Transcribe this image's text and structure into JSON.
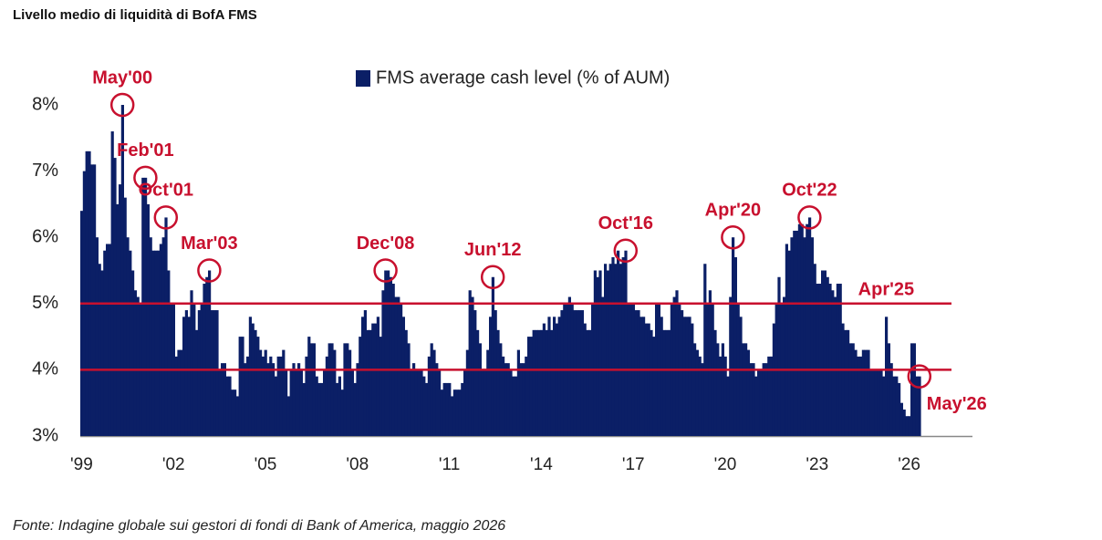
{
  "header": "Livello medio di liquidità di BofA FMS",
  "footer": "Fonte: Indagine globale sui gestori di fondi di Bank of America, maggio 2026",
  "chart_data": {
    "type": "bar",
    "series": [
      {
        "name": "FMS average cash level (% of AUM)",
        "color": "#0b1f66",
        "values": [
          6.4,
          7.0,
          7.3,
          7.3,
          7.1,
          7.1,
          6.0,
          5.6,
          5.5,
          5.8,
          5.9,
          5.9,
          7.6,
          7.2,
          6.5,
          6.8,
          8.0,
          6.6,
          6.0,
          5.8,
          5.5,
          5.2,
          5.1,
          5.0,
          6.9,
          6.9,
          6.5,
          6.0,
          5.8,
          5.8,
          5.8,
          5.9,
          6.0,
          6.3,
          5.5,
          5.0,
          5.0,
          4.2,
          4.3,
          4.3,
          4.8,
          4.9,
          4.8,
          5.2,
          5.0,
          4.6,
          4.9,
          5.0,
          5.3,
          5.4,
          5.5,
          4.9,
          4.9,
          4.9,
          4.0,
          4.1,
          4.1,
          3.9,
          3.9,
          3.7,
          3.7,
          3.6,
          4.5,
          4.5,
          4.1,
          4.2,
          4.8,
          4.7,
          4.6,
          4.5,
          4.3,
          4.2,
          4.3,
          4.1,
          4.2,
          4.1,
          3.9,
          4.2,
          4.2,
          4.3,
          4.0,
          3.6,
          4.0,
          4.1,
          4.0,
          4.1,
          4.0,
          3.8,
          4.2,
          4.5,
          4.4,
          4.4,
          3.9,
          3.8,
          3.8,
          4.0,
          4.2,
          4.4,
          4.4,
          4.3,
          3.8,
          3.9,
          3.7,
          4.4,
          4.4,
          4.3,
          4.0,
          3.8,
          4.1,
          4.5,
          4.8,
          4.9,
          4.6,
          4.6,
          4.7,
          4.7,
          4.8,
          4.5,
          5.2,
          5.5,
          5.5,
          5.4,
          5.3,
          5.1,
          5.1,
          5.0,
          4.8,
          4.6,
          4.4,
          4.0,
          4.1,
          4.0,
          4.0,
          4.0,
          3.9,
          3.8,
          4.2,
          4.4,
          4.3,
          4.1,
          4.0,
          3.7,
          3.8,
          3.8,
          3.8,
          3.6,
          3.7,
          3.7,
          3.7,
          3.8,
          4.0,
          4.3,
          5.2,
          5.1,
          4.9,
          4.6,
          4.4,
          4.0,
          4.0,
          4.3,
          4.8,
          5.4,
          4.9,
          4.6,
          4.4,
          4.2,
          4.1,
          4.1,
          4.0,
          3.9,
          3.9,
          4.3,
          4.1,
          4.1,
          4.2,
          4.5,
          4.5,
          4.6,
          4.6,
          4.6,
          4.6,
          4.7,
          4.6,
          4.8,
          4.6,
          4.8,
          4.7,
          4.8,
          4.9,
          5.0,
          5.0,
          5.1,
          5.0,
          4.9,
          4.9,
          4.9,
          4.9,
          4.7,
          4.6,
          4.6,
          5.0,
          5.5,
          5.4,
          5.5,
          5.1,
          5.6,
          5.5,
          5.6,
          5.7,
          5.6,
          5.8,
          5.6,
          5.7,
          5.8,
          5.0,
          5.0,
          5.0,
          4.9,
          4.9,
          4.8,
          4.8,
          4.7,
          4.7,
          4.6,
          4.5,
          5.0,
          5.0,
          4.8,
          4.6,
          4.6,
          4.6,
          5.0,
          5.1,
          5.2,
          5.0,
          4.9,
          4.8,
          4.8,
          4.8,
          4.7,
          4.4,
          4.3,
          4.2,
          4.1,
          5.6,
          5.0,
          5.2,
          5.0,
          4.6,
          4.4,
          4.2,
          4.4,
          4.2,
          3.9,
          5.1,
          6.0,
          5.7,
          5.0,
          4.8,
          4.4,
          4.4,
          4.3,
          4.1,
          4.1,
          3.9,
          4.0,
          4.0,
          4.1,
          4.1,
          4.2,
          4.2,
          4.7,
          5.0,
          5.4,
          5.0,
          5.1,
          5.9,
          5.8,
          6.0,
          6.1,
          6.1,
          6.2,
          6.2,
          6.0,
          6.2,
          6.3,
          6.0,
          5.6,
          5.3,
          5.3,
          5.5,
          5.5,
          5.4,
          5.3,
          5.2,
          5.1,
          5.3,
          5.3,
          4.7,
          4.6,
          4.6,
          4.4,
          4.4,
          4.3,
          4.2,
          4.2,
          4.3,
          4.3,
          4.3,
          4.0,
          4.0,
          4.0,
          4.0,
          4.0,
          3.9,
          4.8,
          4.4,
          4.1,
          3.9,
          3.9,
          3.8,
          3.5,
          3.4,
          3.3,
          3.3,
          4.4,
          4.4,
          3.9,
          3.9
        ]
      }
    ],
    "categories": [
      "'99",
      null,
      null,
      null,
      null,
      null,
      null,
      null,
      null,
      null,
      null,
      null,
      null,
      null,
      null,
      null,
      null,
      null,
      null,
      null,
      null,
      null,
      null,
      null,
      null,
      null,
      null,
      null,
      null,
      null,
      null,
      null,
      null,
      null,
      null,
      null,
      "'02",
      null,
      null,
      null,
      null,
      null,
      null,
      null,
      null,
      null,
      null,
      null,
      null,
      null,
      null,
      null,
      null,
      null,
      null,
      null,
      null,
      null,
      null,
      null,
      null,
      null,
      null,
      null,
      null,
      null,
      null,
      null,
      null,
      null,
      null,
      null,
      "'05",
      null,
      null,
      null,
      null,
      null,
      null,
      null,
      null,
      null,
      null,
      null,
      null,
      null,
      null,
      null,
      null,
      null,
      null,
      null,
      null,
      null,
      null,
      null,
      null,
      null,
      null,
      null,
      null,
      null,
      null,
      null,
      null,
      null,
      null,
      null,
      "'08",
      null,
      null,
      null,
      null,
      null,
      null,
      null,
      null,
      null,
      null,
      null,
      null,
      null,
      null,
      null,
      null,
      null,
      null,
      null,
      null,
      null,
      null,
      null,
      null,
      null,
      null,
      null,
      null,
      null,
      null,
      null,
      null,
      null,
      null,
      null,
      "'11",
      null,
      null,
      null,
      null,
      null,
      null,
      null,
      null,
      null,
      null,
      null,
      null,
      null,
      null,
      null,
      null,
      null,
      null,
      null,
      null,
      null,
      null,
      null,
      null,
      null,
      null,
      null,
      null,
      null,
      null,
      null,
      null,
      null,
      null,
      null,
      "'14",
      null,
      null,
      null,
      null,
      null,
      null,
      null,
      null,
      null,
      null,
      null,
      null,
      null,
      null,
      null,
      null,
      null,
      null,
      null,
      null,
      null,
      null,
      null,
      null,
      null,
      null,
      null,
      null,
      null,
      null,
      null,
      null,
      null,
      null,
      null,
      "'17",
      null,
      null,
      null,
      null,
      null,
      null,
      null,
      null,
      null,
      null,
      null,
      null,
      null,
      null,
      null,
      null,
      null,
      null,
      null,
      null,
      null,
      null,
      null,
      null,
      null,
      null,
      null,
      null,
      null,
      null,
      null,
      null,
      null,
      null,
      null,
      "'20",
      null,
      null,
      null,
      null,
      null,
      null,
      null,
      null,
      null,
      null,
      null,
      null,
      null,
      null,
      null,
      null,
      null,
      null,
      null,
      null,
      null,
      null,
      null,
      null,
      null,
      null,
      null,
      null,
      null,
      null,
      null,
      null,
      null,
      null,
      null,
      "'23",
      null,
      null,
      null,
      null,
      null,
      null,
      null,
      null,
      null,
      null,
      null,
      null,
      null,
      null,
      null,
      null,
      null,
      null,
      null,
      null,
      null,
      null,
      null,
      null,
      null,
      null,
      null,
      null,
      null,
      null,
      null,
      null,
      null,
      null,
      null,
      "'26",
      null,
      null,
      null,
      null
    ],
    "ylim": [
      3,
      8.5
    ],
    "yticks": [
      {
        "value": 3,
        "label": "3%"
      },
      {
        "value": 4,
        "label": "4%"
      },
      {
        "value": 5,
        "label": "5%"
      },
      {
        "value": 6,
        "label": "6%"
      },
      {
        "value": 7,
        "label": "7%"
      },
      {
        "value": 8,
        "label": "8%"
      }
    ],
    "hlines": [
      4,
      5
    ],
    "hline_color": "#c8102e",
    "legend": "top",
    "annotations": [
      {
        "text": "May'00",
        "index": 16,
        "circle": true
      },
      {
        "text": "Feb'01",
        "index": 25,
        "circle": true
      },
      {
        "text": "Oct'01",
        "index": 33,
        "circle": true
      },
      {
        "text": "Mar'03",
        "index": 50,
        "circle": true
      },
      {
        "text": "Dec'08",
        "index": 119,
        "circle": true
      },
      {
        "text": "Jun'12",
        "index": 161,
        "circle": true
      },
      {
        "text": "Oct'16",
        "index": 213,
        "circle": true
      },
      {
        "text": "Apr'20",
        "index": 255,
        "circle": true
      },
      {
        "text": "Oct'22",
        "index": 285,
        "circle": true
      },
      {
        "text": "Apr'25",
        "index": 315,
        "circle": false
      },
      {
        "text": "May'26",
        "index": 328,
        "circle": true
      }
    ]
  }
}
